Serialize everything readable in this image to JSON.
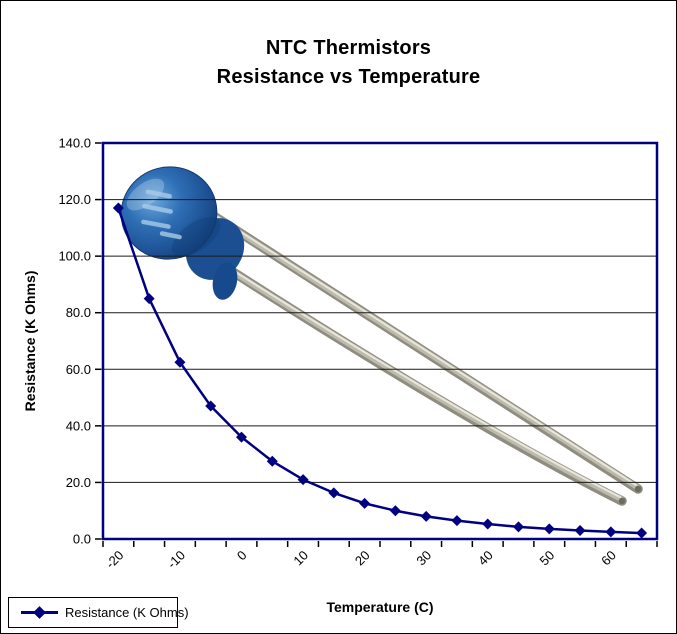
{
  "title": {
    "line1": "NTC Thermistors",
    "line2": "Resistance vs Temperature"
  },
  "chart_data": {
    "type": "line",
    "title": "NTC Thermistors",
    "subtitle": "Resistance vs Temperature",
    "xlabel": "Temperature (C)",
    "ylabel": "Resistance (K Ohms)",
    "x": [
      -20,
      -15,
      -10,
      -5,
      0,
      5,
      10,
      15,
      20,
      25,
      30,
      35,
      40,
      45,
      50,
      55,
      60,
      65
    ],
    "x_labeled_ticks": [
      "-20",
      "-10",
      "0",
      "10",
      "20",
      "30",
      "40",
      "50",
      "60"
    ],
    "series": [
      {
        "name": "Resistance (K Ohms)",
        "color": "#000080",
        "marker": "diamond",
        "values": [
          117,
          85,
          62.5,
          47,
          36,
          27.5,
          21,
          16.3,
          12.6,
          10,
          8,
          6.5,
          5.3,
          4.3,
          3.6,
          3.0,
          2.5,
          2.1
        ]
      }
    ],
    "ylim": [
      0,
      140
    ],
    "ytick_step": 20,
    "ytick_labels": [
      "0.0",
      "20.0",
      "40.0",
      "60.0",
      "80.0",
      "100.0",
      "120.0",
      "140.0"
    ],
    "grid": "horizontal",
    "axis_color": "#000080",
    "gridline_color": "#1a1a1a",
    "legend": {
      "label": "Resistance (K Ohms)",
      "position": "bottom-left"
    }
  },
  "illustration": {
    "name": "NTC disc thermistor photo",
    "body_color": "#2f6fb5",
    "lead_color": "#bdbaae"
  }
}
